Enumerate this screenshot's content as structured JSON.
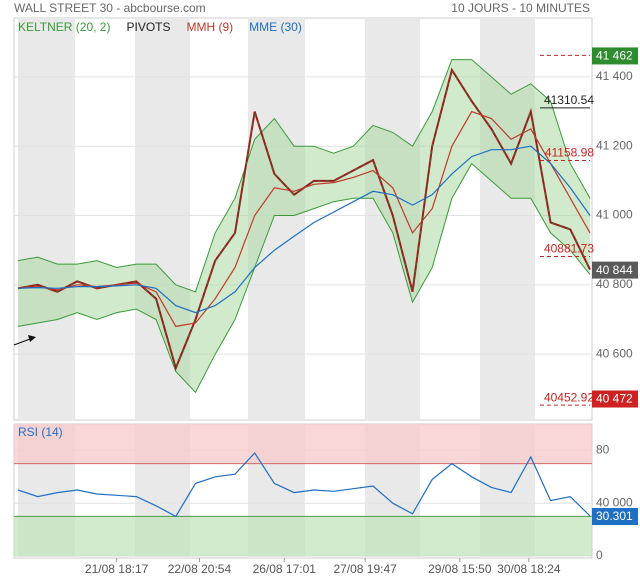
{
  "chart_data": [
    {
      "type": "line",
      "title": "WALL STREET 30 - abcbourse.com",
      "subtitle": "10 JOURS - 10 MINUTES",
      "x": [
        0,
        1,
        2,
        3,
        4,
        5,
        6,
        7,
        8,
        9,
        10,
        11,
        12,
        13,
        14,
        15,
        16,
        17,
        18,
        19,
        20,
        21,
        22,
        23,
        24,
        25,
        26,
        27,
        28,
        29
      ],
      "xlim": [
        0,
        29
      ],
      "xticks": [
        {
          "value": 5,
          "label": "21/08 18:17"
        },
        {
          "value": 9.2,
          "label": "22/08 20:54"
        },
        {
          "value": 13.5,
          "label": "26/08 17:01"
        },
        {
          "value": 17.6,
          "label": "27/08 19:47"
        },
        {
          "value": 22.4,
          "label": "29/08 15:50"
        },
        {
          "value": 25.9,
          "label": "30/08 18:24"
        }
      ],
      "ylim": [
        40410,
        41570
      ],
      "yticks": [
        {
          "value": 40600,
          "label": "40 600"
        },
        {
          "value": 40800,
          "label": "40 800"
        },
        {
          "value": 41000,
          "label": "41 000"
        },
        {
          "value": 41200,
          "label": "41 200"
        },
        {
          "value": 41400,
          "label": "41 400"
        }
      ],
      "values": [
        40790,
        40800,
        40780,
        40810,
        40790,
        40800,
        40810,
        40760,
        40560,
        40700,
        40870,
        40950,
        41300,
        41120,
        41060,
        41100,
        41100,
        41130,
        41160,
        41000,
        40780,
        41200,
        41420,
        41330,
        41250,
        41150,
        41300,
        40980,
        40960,
        40844
      ],
      "color": "#9b1c1c",
      "series": [
        {
          "name": "KELTNER (20, 2)",
          "color": "#3a9a3a",
          "values": [
            40870,
            40880,
            40860,
            40860,
            40870,
            40850,
            40860,
            40860,
            40800,
            40780,
            40950,
            41050,
            41220,
            41280,
            41200,
            41200,
            41180,
            41200,
            41260,
            41240,
            41200,
            41300,
            41450,
            41450,
            41400,
            41350,
            41380,
            41330,
            41150,
            41050
          ],
          "lower": [
            40680,
            40690,
            40700,
            40720,
            40700,
            40720,
            40730,
            40700,
            40550,
            40490,
            40600,
            40700,
            40850,
            41000,
            41000,
            41020,
            41040,
            41050,
            41050,
            40950,
            40750,
            40850,
            41050,
            41150,
            41100,
            41050,
            41050,
            40950,
            40900,
            40830
          ]
        },
        {
          "name": "MMH (9)",
          "color": "#c0392b",
          "values": [
            40790,
            40795,
            40785,
            40800,
            40795,
            40800,
            40805,
            40780,
            40680,
            40690,
            40760,
            40850,
            41000,
            41080,
            41070,
            41090,
            41095,
            41110,
            41130,
            41080,
            40950,
            41020,
            41200,
            41300,
            41280,
            41220,
            41250,
            41150,
            41050,
            40950
          ]
        },
        {
          "name": "MME (30)",
          "color": "#1f6fc4",
          "values": [
            40790,
            40792,
            40790,
            40795,
            40795,
            40797,
            40800,
            40790,
            40740,
            40720,
            40740,
            40780,
            40850,
            40900,
            40940,
            40980,
            41010,
            41040,
            41070,
            41060,
            41030,
            41060,
            41120,
            41170,
            41190,
            41190,
            41200,
            41150,
            41080,
            41000
          ]
        }
      ],
      "pivots": {
        "name": "PIVOTS",
        "color": "#222222",
        "levels": [
          41310.54,
          41158.98,
          40881.73,
          40452.92
        ]
      },
      "markers": [
        {
          "value": 41462,
          "label": "41 462",
          "color": "#2e8b2e"
        },
        {
          "value": 40844,
          "label": "40 844",
          "color": "#5a5a5a"
        },
        {
          "value": 40472,
          "label": "40 472",
          "color": "#cc2222"
        }
      ]
    },
    {
      "type": "line",
      "title": "RSI (14)",
      "x": [
        0,
        1,
        2,
        3,
        4,
        5,
        6,
        7,
        8,
        9,
        10,
        11,
        12,
        13,
        14,
        15,
        16,
        17,
        18,
        19,
        20,
        21,
        22,
        23,
        24,
        25,
        26,
        27,
        28,
        29
      ],
      "xlim": [
        0,
        29
      ],
      "values": [
        50,
        45,
        48,
        50,
        47,
        46,
        45,
        38,
        30,
        55,
        60,
        62,
        78,
        55,
        48,
        50,
        49,
        51,
        53,
        40,
        32,
        58,
        70,
        60,
        52,
        48,
        75,
        42,
        45,
        30.301
      ],
      "color": "#1f6fc4",
      "ylim": [
        0,
        100
      ],
      "yticks": [
        0,
        {
          "value": 40,
          "label": "40 000"
        },
        80
      ],
      "overbought": 70,
      "oversold": 30,
      "last_value": 30.301
    }
  ]
}
